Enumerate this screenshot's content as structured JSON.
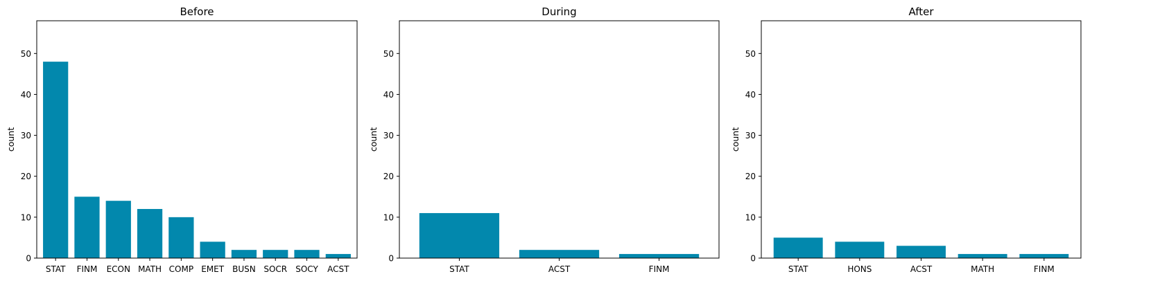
{
  "chart_data": [
    {
      "type": "bar",
      "title": "Before",
      "xlabel": "",
      "ylabel": "count",
      "ylim": [
        0,
        58
      ],
      "yticks": [
        0,
        10,
        20,
        30,
        40,
        50
      ],
      "color": "#0288ad",
      "grid": false,
      "categories": [
        "STAT",
        "FINM",
        "ECON",
        "MATH",
        "COMP",
        "EMET",
        "BUSN",
        "SOCR",
        "SOCY",
        "ACST"
      ],
      "values": [
        48,
        15,
        14,
        12,
        10,
        4,
        2,
        2,
        2,
        1
      ]
    },
    {
      "type": "bar",
      "title": "During",
      "xlabel": "",
      "ylabel": "count",
      "ylim": [
        0,
        58
      ],
      "yticks": [
        0,
        10,
        20,
        30,
        40,
        50
      ],
      "color": "#0288ad",
      "grid": false,
      "categories": [
        "STAT",
        "ACST",
        "FINM"
      ],
      "values": [
        11,
        2,
        1
      ]
    },
    {
      "type": "bar",
      "title": "After",
      "xlabel": "",
      "ylabel": "count",
      "ylim": [
        0,
        58
      ],
      "yticks": [
        0,
        10,
        20,
        30,
        40,
        50
      ],
      "color": "#0288ad",
      "grid": false,
      "categories": [
        "STAT",
        "HONS",
        "ACST",
        "MATH",
        "FINM"
      ],
      "values": [
        5,
        4,
        3,
        1,
        1
      ]
    }
  ]
}
